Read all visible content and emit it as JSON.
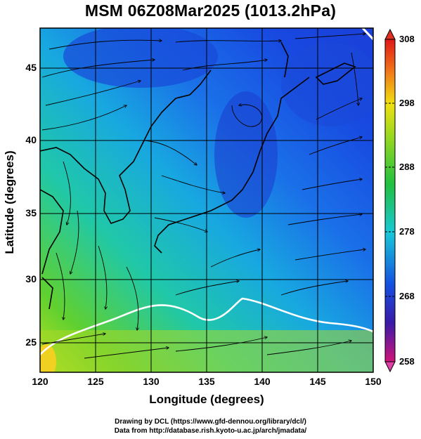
{
  "title": "MSM 06Z08Mar2025 (1013.2hPa)",
  "xaxis": {
    "label": "Longitude (degrees)",
    "ticks": [
      "120",
      "125",
      "130",
      "135",
      "140",
      "145",
      "150"
    ]
  },
  "yaxis": {
    "label": "Latitude  (degrees)",
    "ticks": [
      "45",
      "40",
      "35",
      "30",
      "25"
    ]
  },
  "colorbar": {
    "ticks": [
      "308",
      "298",
      "288",
      "278",
      "268",
      "258"
    ],
    "colors": [
      "#d0147a",
      "#3a1aa8",
      "#1450e0",
      "#18c8d8",
      "#20c040",
      "#9ad820",
      "#f0e010",
      "#f07818",
      "#e01818"
    ]
  },
  "credits": {
    "line1": "Drawing by DCL (https://www.gfd-dennou.org/library/dcl/)",
    "line2": "Data from http://database.rish.kyoto-u.ac.jp/arch/jmadata/"
  },
  "chart_data": {
    "type": "heatmap",
    "field": "temperature with streamlines",
    "xlim": [
      120,
      150
    ],
    "ylim": [
      22.4,
      47.6
    ],
    "clim": [
      258,
      308
    ]
  }
}
